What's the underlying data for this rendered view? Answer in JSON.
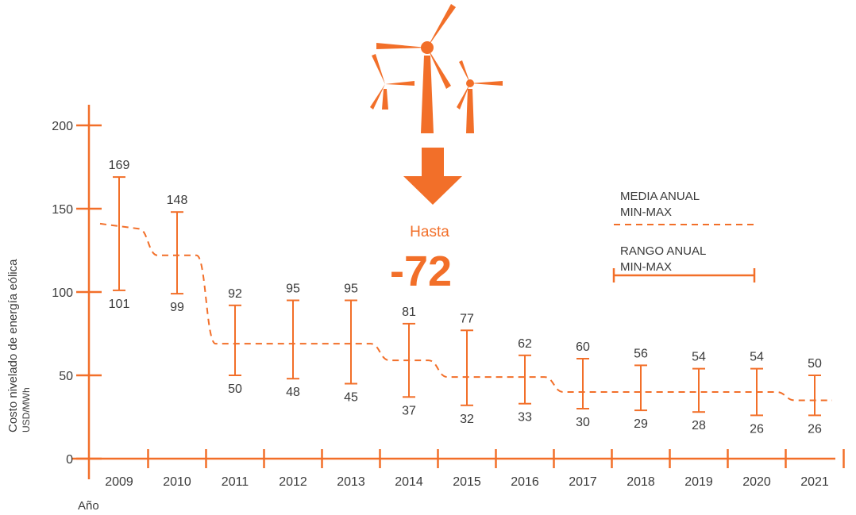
{
  "chart_data": {
    "type": "line",
    "ylabel": "Costo nivelado de energía eólica",
    "yunit": "USD/MWh",
    "xlabel": "Año",
    "ylim": [
      0,
      200
    ],
    "yticks": [
      0,
      50,
      100,
      150,
      200
    ],
    "categories": [
      "2009",
      "2010",
      "2011",
      "2012",
      "2013",
      "2014",
      "2015",
      "2016",
      "2017",
      "2018",
      "2019",
      "2020",
      "2021"
    ],
    "series": [
      {
        "name": "MEDIA ANUAL MIN-MAX",
        "style": "dashed",
        "values": [
          138,
          122,
          69,
          69,
          69,
          59,
          49,
          49,
          40,
          40,
          40,
          40,
          35
        ]
      },
      {
        "name": "RANGO ANUAL MIN-MAX",
        "style": "errorbar",
        "max": [
          169,
          148,
          92,
          95,
          95,
          81,
          77,
          62,
          60,
          56,
          54,
          54,
          50
        ],
        "min": [
          101,
          99,
          50,
          48,
          45,
          37,
          32,
          33,
          30,
          29,
          28,
          26,
          26
        ]
      }
    ],
    "legend": {
      "position": "right",
      "items": [
        {
          "label_line1": "MEDIA ANUAL",
          "label_line2": "MIN-MAX",
          "style": "dashed"
        },
        {
          "label_line1": "RANGO ANUAL",
          "label_line2": "MIN-MAX",
          "style": "range"
        }
      ]
    },
    "callout": {
      "text": "Hasta",
      "value": "-72",
      "icon": "wind-turbines-icon",
      "arrow": "down-arrow-icon"
    },
    "grid": false,
    "colors": {
      "accent": "#F26F29",
      "text": "#3a3a3a"
    }
  }
}
